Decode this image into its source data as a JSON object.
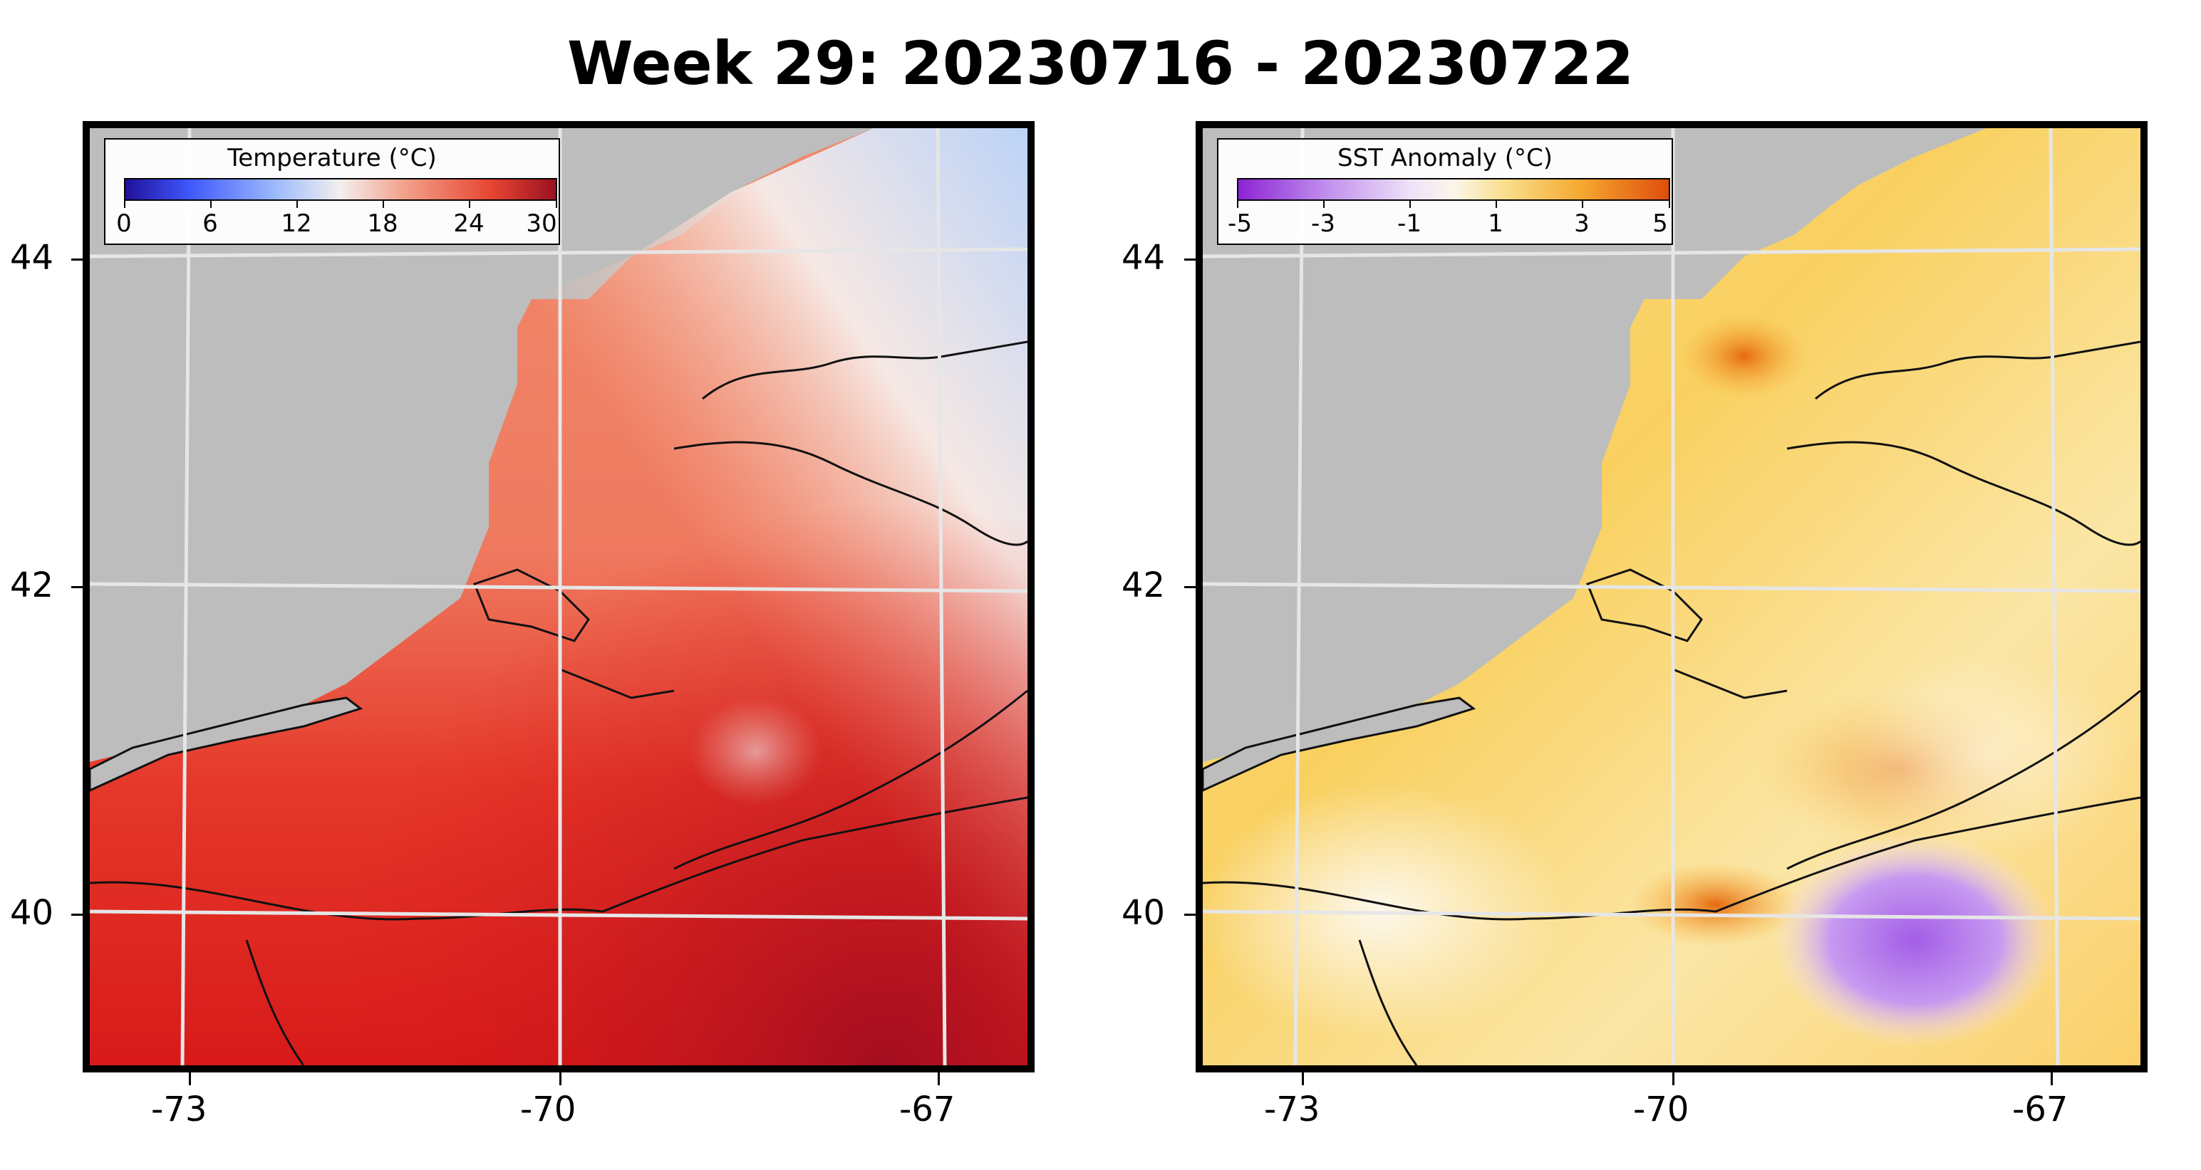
{
  "title": "Week 29: 20230716 - 20230722",
  "colors": {
    "land": "#bdbdbd",
    "gridline": "#e6e6e6",
    "coast": "#111111"
  },
  "panels": [
    {
      "id": "temperature",
      "colorbar": {
        "label": "Temperature (°C)",
        "ticks": [
          "0",
          "6",
          "12",
          "18",
          "24",
          "30"
        ],
        "colormap": "blue-white-red"
      },
      "y_ticks": [
        "44",
        "42",
        "40"
      ],
      "x_ticks": [
        "-73",
        "-70",
        "-67"
      ]
    },
    {
      "id": "anomaly",
      "colorbar": {
        "label": "SST Anomaly (°C)",
        "ticks": [
          "-5",
          "-3",
          "-1",
          "1",
          "3",
          "5"
        ],
        "colormap": "purple-white-orange"
      },
      "y_ticks": [
        "44",
        "42",
        "40"
      ],
      "x_ticks": [
        "-73",
        "-70",
        "-67"
      ]
    }
  ]
}
